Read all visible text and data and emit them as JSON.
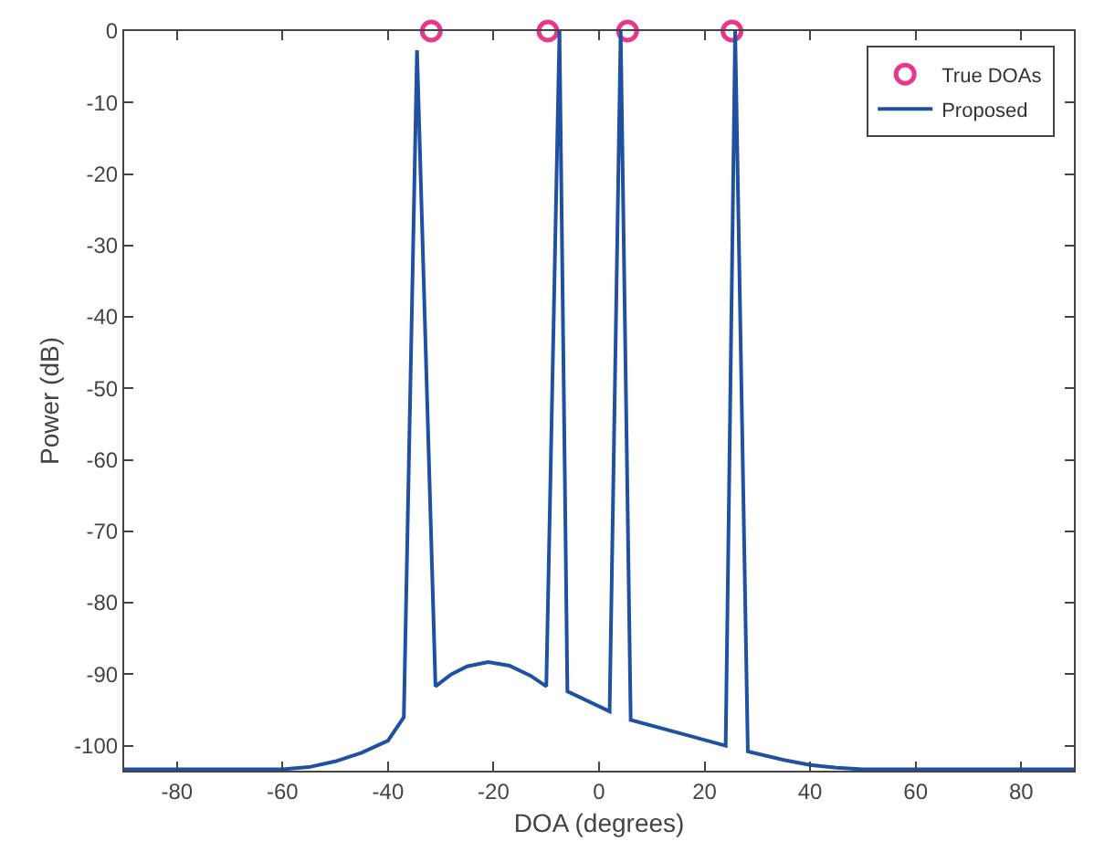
{
  "chart_data": {
    "type": "line",
    "xlabel": "DOA (degrees)",
    "ylabel": "Power (dB)",
    "xlim": [
      -90,
      90
    ],
    "xticks": [
      -80,
      -60,
      -40,
      -20,
      0,
      20,
      40,
      60,
      80
    ],
    "ylim": [
      -103.5,
      0
    ],
    "yticks": [
      -100,
      -90,
      -80,
      -70,
      -60,
      -50,
      -40,
      -30,
      -20,
      -10,
      0
    ],
    "grid": false,
    "legend": "top right",
    "series": [
      {
        "name": "True DOAs",
        "type": "scatter",
        "marker": "circle",
        "color": "#e8388a",
        "x": [
          -31.8,
          -9.7,
          5.4,
          25.2
        ],
        "values": [
          0,
          0,
          0,
          0
        ]
      },
      {
        "name": "Proposed",
        "marker": "none",
        "line_style": "solid",
        "color": "#2050a0",
        "x": [
          -90,
          -75,
          -60,
          -55,
          -50,
          -45,
          -40,
          -37,
          -34.5,
          -31,
          -28,
          -25,
          -21,
          -17,
          -13,
          -10,
          -7.5,
          -6,
          2,
          4.1,
          6,
          24,
          25.8,
          28.2,
          35,
          40,
          45,
          50,
          60,
          75,
          90
        ],
        "values": [
          -103.3,
          -103.3,
          -103.3,
          -103,
          -102.2,
          -101,
          -99.3,
          -96,
          -2.7,
          -91.7,
          -90,
          -88.9,
          -88.3,
          -88.8,
          -90.2,
          -91.7,
          0,
          -92.4,
          -95.2,
          0,
          -96.4,
          -100,
          0,
          -100.8,
          -102,
          -102.7,
          -103.1,
          -103.3,
          -103.3,
          -103.3,
          -103.3
        ]
      }
    ]
  }
}
